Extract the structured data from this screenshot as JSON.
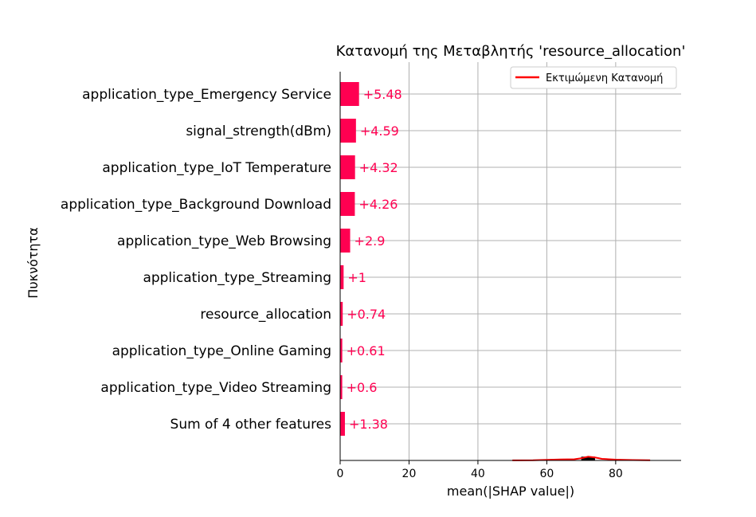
{
  "chart_data": {
    "type": "bar",
    "title": "Κατανομή της Μεταβλητής 'resource_allocation'",
    "xlabel": "mean(|SHAP value|)",
    "ylabel": "Πυκνότητα",
    "xlim": [
      0,
      99
    ],
    "xticks": [
      0,
      20,
      40,
      60,
      80
    ],
    "grid": true,
    "categories": [
      "application_type_Emergency Service",
      "signal_strength(dBm)",
      "application_type_IoT Temperature",
      "application_type_Background Download",
      "application_type_Web Browsing",
      "application_type_Streaming",
      "resource_allocation",
      "application_type_Online Gaming",
      "application_type_Video Streaming",
      "Sum of 4 other features"
    ],
    "values": [
      5.48,
      4.59,
      4.32,
      4.26,
      2.9,
      1,
      0.74,
      0.61,
      0.6,
      1.38
    ],
    "value_labels": [
      "+5.48",
      "+4.59",
      "+4.32",
      "+4.26",
      "+2.9",
      "+1",
      "+0.74",
      "+0.61",
      "+0.6",
      "+1.38"
    ],
    "bar_color": "#ff0051",
    "legend": {
      "position": "top-right",
      "entries": [
        {
          "label": "Εκτιμώμενη Κατανομή",
          "color": "#ff0000"
        }
      ]
    },
    "density_line": {
      "color": "#ff0000",
      "x": [
        50,
        56,
        60,
        64,
        68,
        70,
        72,
        74,
        76,
        80,
        85,
        90
      ],
      "y": [
        0.02,
        0.05,
        0.15,
        0.25,
        0.3,
        0.55,
        0.95,
        0.75,
        0.4,
        0.2,
        0.1,
        0.05
      ]
    },
    "hist_bar": {
      "x0": 70,
      "x1": 74,
      "height": 0.95,
      "color": "#000000"
    }
  }
}
